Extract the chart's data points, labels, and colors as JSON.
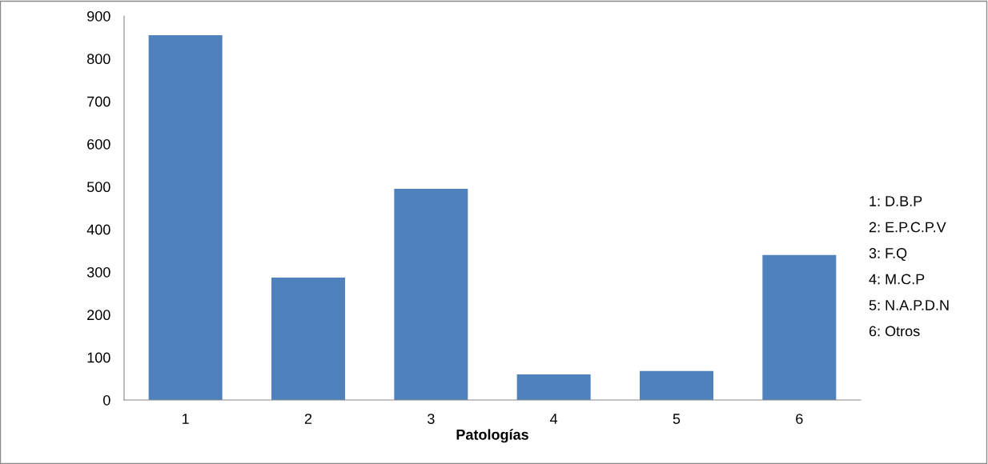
{
  "chart_data": {
    "type": "bar",
    "xlabel": "Patologías",
    "categories": [
      "1",
      "2",
      "3",
      "4",
      "5",
      "6"
    ],
    "values": [
      855,
      287,
      495,
      60,
      68,
      340
    ],
    "color": "#4f81bd",
    "ylim": [
      0,
      900
    ],
    "yticks": [
      0,
      100,
      200,
      300,
      400,
      500,
      600,
      700,
      800,
      900
    ],
    "grid": false,
    "legend": false,
    "annotations": [
      "1: D.B.P",
      "2: E.P.C.P.V",
      "3: F.Q",
      "4: M.C.P",
      "5: N.A.P.D.N",
      "6: Otros"
    ]
  }
}
